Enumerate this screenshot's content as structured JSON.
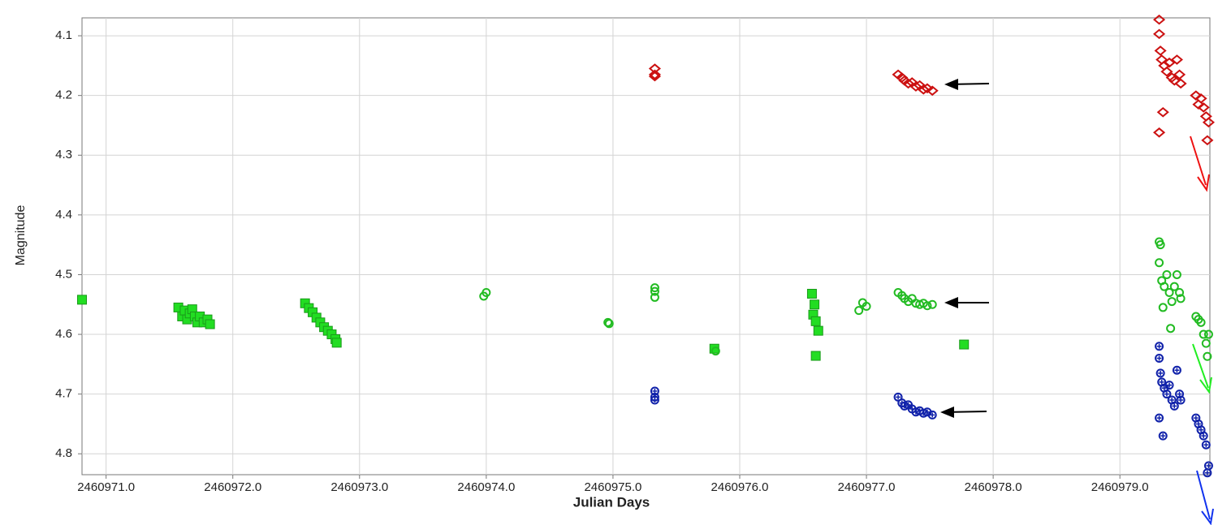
{
  "chart_data": {
    "type": "scatter",
    "xlabel": "Julian Days",
    "ylabel": "Magnitude",
    "xlim": [
      2460970.81,
      2460979.71
    ],
    "ylim": [
      4.07,
      4.835
    ],
    "y_inverted": true,
    "grid": true,
    "xticks": [
      {
        "value": 2460971,
        "label": "2460971.0"
      },
      {
        "value": 2460972,
        "label": "2460972.0"
      },
      {
        "value": 2460973,
        "label": "2460973.0"
      },
      {
        "value": 2460974,
        "label": "2460974.0"
      },
      {
        "value": 2460975,
        "label": "2460975.0"
      },
      {
        "value": 2460976,
        "label": "2460976.0"
      },
      {
        "value": 2460977,
        "label": "2460977.0"
      },
      {
        "value": 2460978,
        "label": "2460978.0"
      },
      {
        "value": 2460979,
        "label": "2460979.0"
      }
    ],
    "yticks": [
      4.1,
      4.2,
      4.3,
      4.4,
      4.5,
      4.6,
      4.7,
      4.8
    ],
    "series": [
      {
        "marker": "square",
        "color": "#22dd22",
        "x": [
          2460970.81,
          2460971.57,
          2460971.6,
          2460971.62,
          2460971.64,
          2460971.66,
          2460971.68,
          2460971.7,
          2460971.72,
          2460971.74,
          2460971.77,
          2460971.8,
          2460971.82,
          2460972.57,
          2460972.6,
          2460972.63,
          2460972.66,
          2460972.69,
          2460972.72,
          2460972.75,
          2460972.78,
          2460972.81,
          2460972.82,
          2460975.8,
          2460976.57,
          2460976.59,
          2460976.58,
          2460976.6,
          2460976.62,
          2460976.6,
          2460977.77
        ],
        "values": [
          4.542,
          4.555,
          4.57,
          4.56,
          4.575,
          4.565,
          4.558,
          4.57,
          4.58,
          4.57,
          4.58,
          4.575,
          4.583,
          4.548,
          4.556,
          4.563,
          4.572,
          4.58,
          4.588,
          4.594,
          4.6,
          4.608,
          4.614,
          4.624,
          4.532,
          4.55,
          4.567,
          4.578,
          4.594,
          4.636,
          4.617
        ]
      },
      {
        "marker": "circle",
        "color": "#22bb22",
        "x": [
          2460973.98,
          2460974.0,
          2460974.96,
          2460974.97,
          2460975.33,
          2460975.33,
          2460975.33,
          2460975.81,
          2460976.94,
          2460976.97,
          2460977.0,
          2460977.25,
          2460977.28,
          2460977.3,
          2460977.33,
          2460977.36,
          2460977.39,
          2460977.42,
          2460977.45,
          2460977.48,
          2460977.52,
          2460979.31,
          2460979.32,
          2460979.31,
          2460979.33,
          2460979.35,
          2460979.37,
          2460979.39,
          2460979.41,
          2460979.43,
          2460979.45,
          2460979.47,
          2460979.48,
          2460979.34,
          2460979.4,
          2460979.6,
          2460979.62,
          2460979.64,
          2460979.66,
          2460979.68,
          2460979.7,
          2460979.69
        ],
        "values": [
          4.536,
          4.53,
          4.58,
          4.582,
          4.522,
          4.528,
          4.538,
          4.628,
          4.56,
          4.547,
          4.553,
          4.53,
          4.535,
          4.54,
          4.545,
          4.54,
          4.548,
          4.55,
          4.548,
          4.552,
          4.55,
          4.445,
          4.45,
          4.48,
          4.51,
          4.52,
          4.5,
          4.53,
          4.545,
          4.52,
          4.5,
          4.53,
          4.54,
          4.555,
          4.59,
          4.57,
          4.575,
          4.58,
          4.6,
          4.615,
          4.6,
          4.637
        ]
      },
      {
        "marker": "diamond",
        "color": "#cc1111",
        "x": [
          2460975.33,
          2460975.33,
          2460975.33,
          2460977.25,
          2460977.28,
          2460977.3,
          2460977.33,
          2460977.36,
          2460977.39,
          2460977.42,
          2460977.45,
          2460977.48,
          2460977.52,
          2460979.31,
          2460979.31,
          2460979.32,
          2460979.33,
          2460979.31,
          2460979.35,
          2460979.37,
          2460979.39,
          2460979.41,
          2460979.43,
          2460979.45,
          2460979.47,
          2460979.48,
          2460979.34,
          2460979.6,
          2460979.62,
          2460979.64,
          2460979.66,
          2460979.68,
          2460979.7,
          2460979.69
        ],
        "values": [
          4.155,
          4.165,
          4.168,
          4.165,
          4.17,
          4.175,
          4.18,
          4.178,
          4.185,
          4.183,
          4.19,
          4.188,
          4.192,
          4.073,
          4.097,
          4.125,
          4.14,
          4.262,
          4.15,
          4.16,
          4.145,
          4.17,
          4.175,
          4.14,
          4.165,
          4.18,
          4.228,
          4.2,
          4.215,
          4.205,
          4.22,
          4.235,
          4.245,
          4.275
        ]
      },
      {
        "marker": "star",
        "color": "#1122aa",
        "x": [
          2460975.33,
          2460975.33,
          2460975.33,
          2460977.25,
          2460977.28,
          2460977.3,
          2460977.33,
          2460977.36,
          2460977.39,
          2460977.42,
          2460977.45,
          2460977.48,
          2460977.52,
          2460979.31,
          2460979.31,
          2460979.32,
          2460979.33,
          2460979.31,
          2460979.35,
          2460979.37,
          2460979.39,
          2460979.41,
          2460979.43,
          2460979.45,
          2460979.47,
          2460979.48,
          2460979.34,
          2460979.6,
          2460979.62,
          2460979.64,
          2460979.66,
          2460979.68,
          2460979.7,
          2460979.69
        ],
        "values": [
          4.695,
          4.705,
          4.71,
          4.705,
          4.715,
          4.72,
          4.718,
          4.725,
          4.73,
          4.728,
          4.732,
          4.73,
          4.735,
          4.62,
          4.64,
          4.665,
          4.68,
          4.74,
          4.69,
          4.7,
          4.685,
          4.71,
          4.72,
          4.66,
          4.7,
          4.71,
          4.77,
          4.74,
          4.75,
          4.76,
          4.77,
          4.785,
          4.82,
          4.832
        ]
      }
    ]
  }
}
